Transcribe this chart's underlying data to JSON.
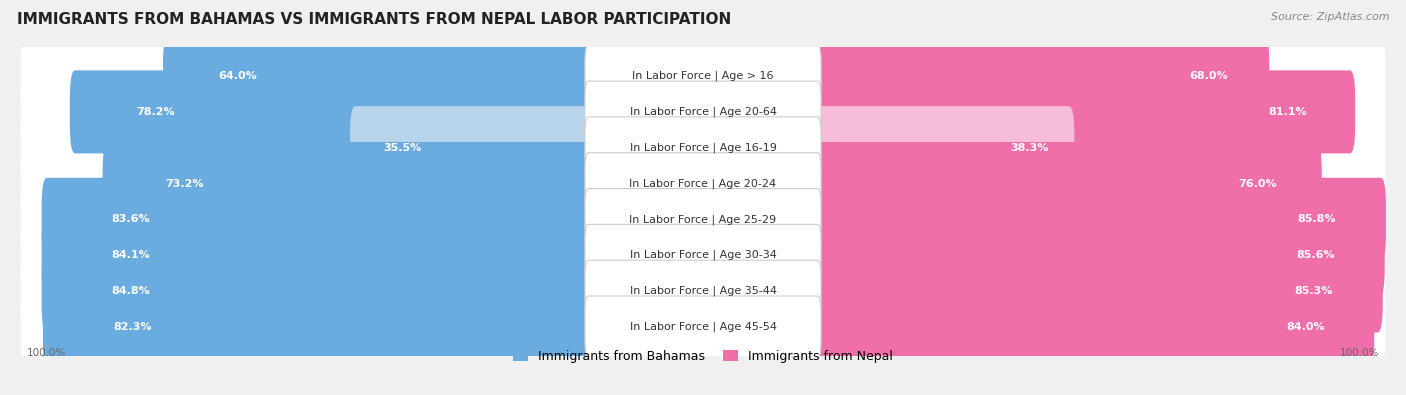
{
  "title": "IMMIGRANTS FROM BAHAMAS VS IMMIGRANTS FROM NEPAL LABOR PARTICIPATION",
  "source": "Source: ZipAtlas.com",
  "categories": [
    "In Labor Force | Age > 16",
    "In Labor Force | Age 20-64",
    "In Labor Force | Age 16-19",
    "In Labor Force | Age 20-24",
    "In Labor Force | Age 25-29",
    "In Labor Force | Age 30-34",
    "In Labor Force | Age 35-44",
    "In Labor Force | Age 45-54"
  ],
  "bahamas_values": [
    64.0,
    78.2,
    35.5,
    73.2,
    83.6,
    84.1,
    84.8,
    82.3
  ],
  "nepal_values": [
    68.0,
    81.1,
    38.3,
    76.0,
    85.8,
    85.6,
    85.3,
    84.0
  ],
  "bahamas_color": "#6aabe0",
  "bahamas_color_light": "#b8d4eb",
  "nepal_color": "#f06eaa",
  "nepal_color_light": "#f7bdd8",
  "background_color": "#f0f0f0",
  "row_bg_color": "#ffffff",
  "title_fontsize": 11,
  "label_fontsize": 8,
  "value_fontsize": 8,
  "legend_fontsize": 9,
  "source_fontsize": 8
}
